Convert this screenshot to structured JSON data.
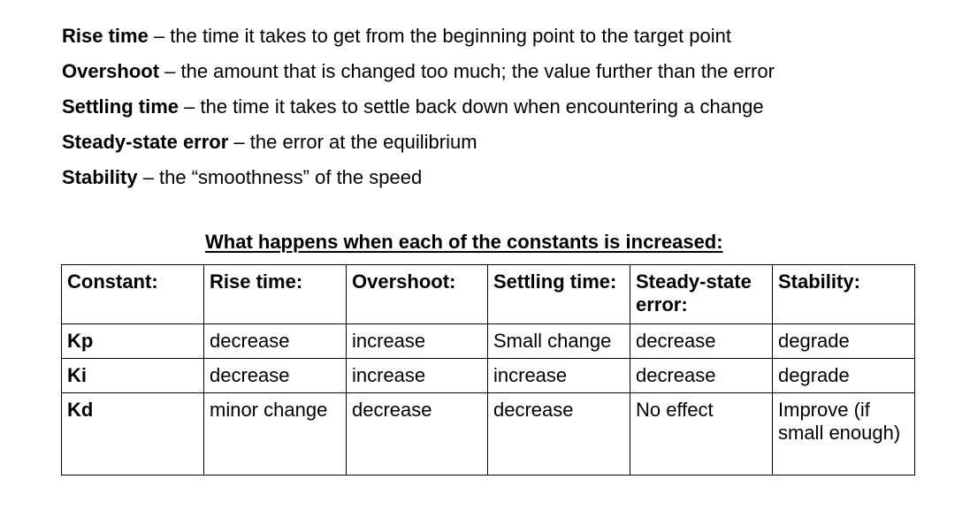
{
  "definitions": [
    {
      "term": "Rise time",
      "text": " – the time it takes to get from the beginning point to the target point"
    },
    {
      "term": "Overshoot",
      "text": " – the amount that is changed too much; the value further than the error"
    },
    {
      "term": "Settling time",
      "text": " – the time it takes to settle back down when encountering a change"
    },
    {
      "term": "Steady-state error",
      "text": " – the error at the equilibrium"
    },
    {
      "term": "Stability",
      "text": " – the “smoothness” of the speed"
    }
  ],
  "table": {
    "heading": "What happens when each of the constants is increased:",
    "headers": [
      "Constant:",
      "Rise time:",
      "Overshoot:",
      "Settling time:",
      "Steady-state error:",
      "Stability:"
    ],
    "rows": [
      {
        "constant": "Kp",
        "rise_time": "decrease",
        "overshoot": "increase",
        "settling_time": "Small change",
        "steady_state_error": "decrease",
        "stability": "degrade"
      },
      {
        "constant": "Ki",
        "rise_time": "decrease",
        "overshoot": "increase",
        "settling_time": "increase",
        "steady_state_error": "decrease",
        "stability": "degrade"
      },
      {
        "constant": "Kd",
        "rise_time": "minor change",
        "overshoot": "decrease",
        "settling_time": "decrease",
        "steady_state_error": "No effect",
        "stability": "Improve (if small enough)"
      }
    ]
  }
}
